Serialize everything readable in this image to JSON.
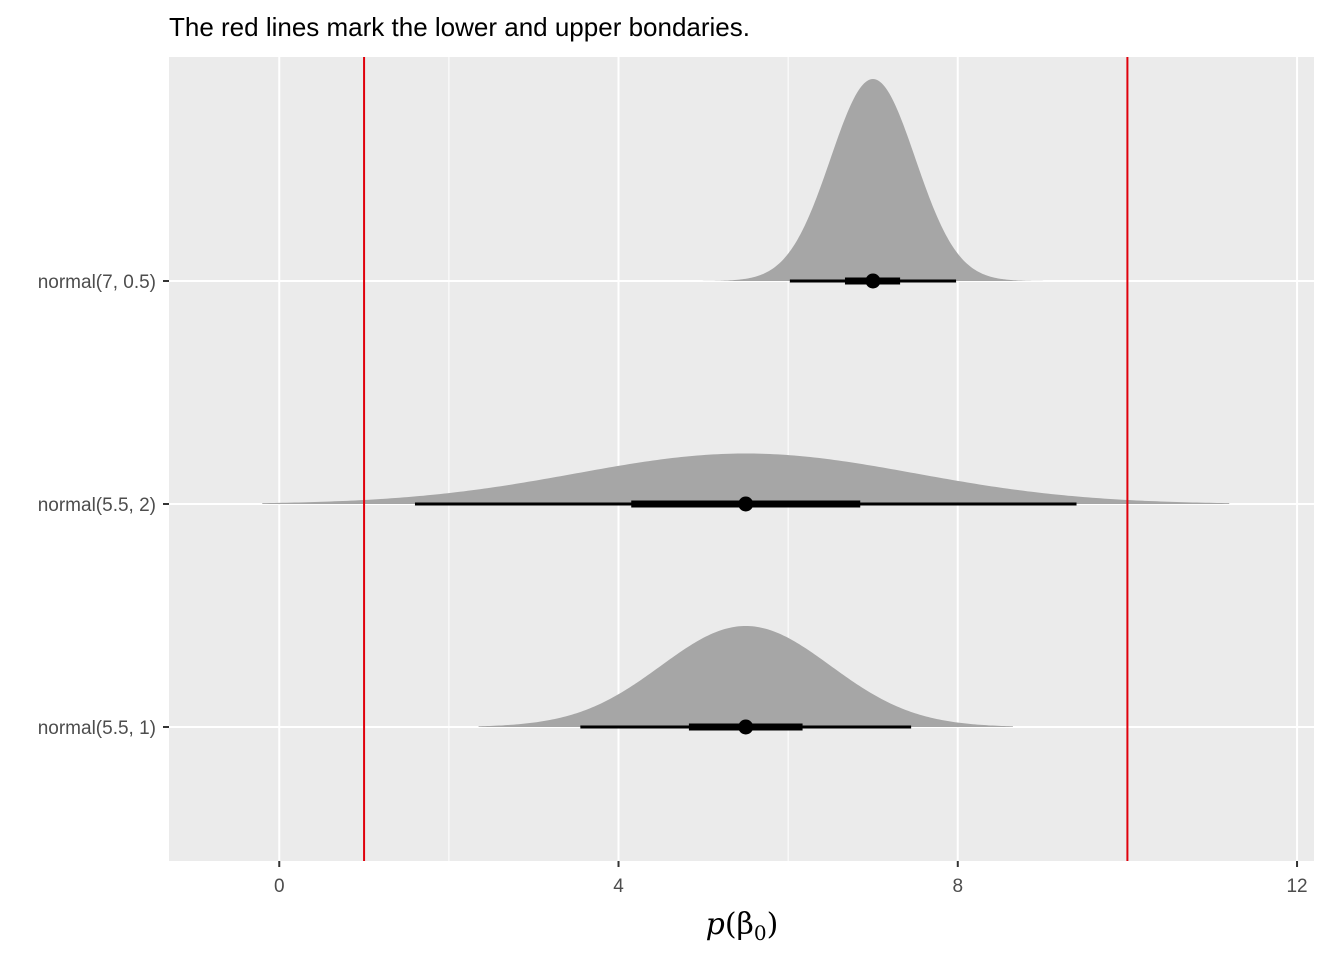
{
  "chart_data": {
    "type": "halfeye",
    "title": "The red lines mark the lower and upper bondaries.",
    "xlabel_main": "p",
    "xlabel_open": "(β",
    "xlabel_sub": "0",
    "xlabel_close": ")",
    "ylabel": "",
    "xlim": [
      -1.3,
      12.2
    ],
    "x_ticks": [
      0,
      4,
      8,
      12
    ],
    "x_tick_labels": [
      "0",
      "4",
      "8",
      "12"
    ],
    "x_minor_ticks": [
      2,
      6,
      10
    ],
    "categories": [
      "normal(7, 0.5)",
      "normal(5.5, 2)",
      "normal(5.5, 1)"
    ],
    "series": [
      {
        "mean": 7,
        "sd": 0.5,
        "point": 7.0,
        "interval_66": [
          6.67,
          7.32
        ],
        "interval_95": [
          6.02,
          7.98
        ],
        "density_range": [
          4.9,
          9.1
        ]
      },
      {
        "mean": 5.5,
        "sd": 2,
        "point": 5.5,
        "interval_66": [
          4.15,
          6.85
        ],
        "interval_95": [
          1.6,
          9.4
        ],
        "density_range": [
          -0.2,
          11.2
        ]
      },
      {
        "mean": 5.5,
        "sd": 1,
        "point": 5.5,
        "interval_66": [
          4.83,
          6.17
        ],
        "interval_95": [
          3.55,
          7.45
        ],
        "density_range": [
          2.35,
          8.65
        ]
      }
    ],
    "reference_lines": [
      1,
      10
    ],
    "reference_line_color": "#e0000b",
    "density_color": "#a6a6a6",
    "panel_background": "#ebebeb",
    "grid": true
  }
}
